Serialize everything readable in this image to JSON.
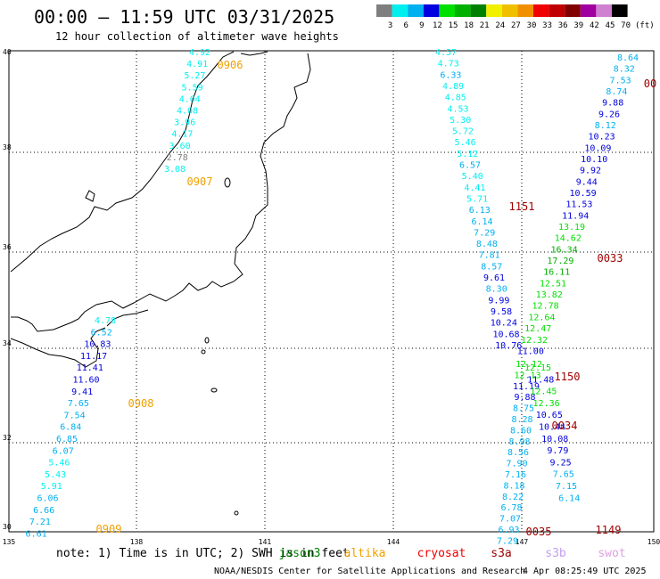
{
  "title": "00:00 – 11:59 UTC 03/31/2025",
  "subtitle": "12 hour collection of altimeter wave heights",
  "scale": {
    "labels": [
      "3",
      "6",
      "9",
      "12",
      "15",
      "18",
      "21",
      "24",
      "27",
      "30",
      "33",
      "36",
      "39",
      "42",
      "45",
      "70"
    ],
    "unit": "(ft)",
    "colors": [
      "#7f7f7f",
      "#00f0f0",
      "#00b0f0",
      "#0000e0",
      "#00e000",
      "#00b000",
      "#008000",
      "#f0f000",
      "#f0c000",
      "#f09000",
      "#f00000",
      "#c00000",
      "#800000",
      "#a000a0",
      "#d080d0",
      "#000000"
    ]
  },
  "axes": {
    "lat_labels": [
      "40",
      "38",
      "36",
      "34",
      "32",
      "30"
    ],
    "lon_labels": [
      "135",
      "138",
      "141",
      "144",
      "147",
      "150"
    ]
  },
  "tracks": [
    {
      "label": "0906",
      "time_color": "#f0a000",
      "values": [
        "4.92",
        "4.91",
        "5.27",
        "5.59",
        "4.04",
        "4.08",
        "3.96",
        "4.17",
        "3.60",
        "2.78",
        "3.08"
      ]
    },
    {
      "label": "0907",
      "time_color": "#f0a000",
      "values": []
    },
    {
      "label": "0908",
      "time_color": "#f0a000",
      "values": [
        "4.78",
        "6.52",
        "10.83",
        "11.17",
        "11.41",
        "11.60",
        "9.41",
        "7.65",
        "7.54",
        "6.84",
        "6.85",
        "6.07",
        "5.46",
        "5.43",
        "5.91",
        "6.06",
        "6.66",
        "7.21",
        "6.61"
      ]
    },
    {
      "label": "0909",
      "time_color": "#f0a000",
      "values": []
    },
    {
      "label": "1151",
      "time_color": "#a00000",
      "values": [
        "4.57",
        "4.73",
        "6.33",
        "4.89",
        "4.85",
        "4.53",
        "5.30",
        "5.72",
        "5.46",
        "5.12",
        "6.57",
        "5.40",
        "4.41",
        "5.71",
        "6.13",
        "6.14",
        "7.29",
        "8.48",
        "7.81",
        "8.57",
        "9.61",
        "8.30",
        "9.99",
        "9.58",
        "10.24",
        "10.68",
        "10.76"
      ]
    },
    {
      "label": "0033",
      "time_color": "#a00000",
      "values": [
        "8.64",
        "8.32",
        "7.53",
        "8.74",
        "9.88",
        "9.26",
        "8.12",
        "10.23",
        "10.09",
        "10.10",
        "9.92",
        "9.44",
        "10.59",
        "11.53",
        "11.94",
        "13.19",
        "14.62",
        "16.34",
        "17.29",
        "16.11",
        "12.51",
        "13.82",
        "12.78",
        "12.64",
        "12.47",
        "12.32",
        "11.00"
      ]
    },
    {
      "label": "1150",
      "time_color": "#a00000",
      "values": [
        "12.12",
        "12.13",
        "11.19",
        "9.88",
        "8.75",
        "8.28",
        "8.60",
        "8.98",
        "8.56",
        "7.90",
        "7.16",
        "8.18",
        "8.22",
        "6.78",
        "7.07",
        "6.93",
        "7.29"
      ]
    },
    {
      "label": "0034",
      "time_color": "#a00000",
      "values": [
        "12.15",
        "11.48",
        "12.45",
        "12.36",
        "10.65",
        "10.44",
        "10.08",
        "9.79",
        "9.25",
        "7.65",
        "7.15",
        "6.14"
      ]
    },
    {
      "label": "0035",
      "time_color": "#a00000",
      "values": []
    },
    {
      "label": "1149",
      "time_color": "#a00000",
      "values": []
    },
    {
      "label": "00",
      "time_color": "#a00000",
      "values": []
    }
  ],
  "footer": {
    "note": "note:  1) Time is in UTC; 2) SWH is in feet",
    "satellites": [
      {
        "name": "jason3",
        "color": "#008000"
      },
      {
        "name": "altika",
        "color": "#f0a000"
      },
      {
        "name": "cryosat",
        "color": "#f00000"
      },
      {
        "name": "s3a",
        "color": "#a00000"
      },
      {
        "name": "s3b",
        "color": "#c0a0f0"
      },
      {
        "name": "swot",
        "color": "#e0a0e0"
      }
    ],
    "credit": "NOAA/NESDIS Center for Satellite Applications and Research",
    "timestamp": "4 Apr 08:25:49 UTC 2025"
  }
}
